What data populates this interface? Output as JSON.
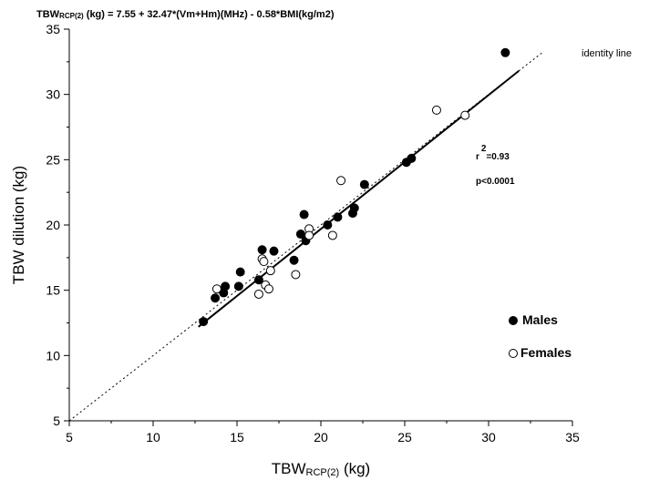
{
  "chart_data": {
    "type": "scatter",
    "title": "TBWRCP(2) (kg) = 7.55 + 32.47*(Vm+Hm)(MHz) - 0.58*BMI(kg/m2)",
    "title_parts": {
      "prefix": "TBW",
      "subscript": "RCP(2)",
      "rest": " (kg) = 7.55 + 32.47*(Vm+Hm)(MHz) - 0.58*BMI(kg/m2)"
    },
    "xlabel": "TBWRCP(2) (kg)",
    "xlabel_parts": {
      "prefix": "TBW",
      "subscript": "RCP(2)",
      "rest": " (kg)"
    },
    "ylabel": "TBW  dilution (kg)",
    "xlim": [
      5,
      35
    ],
    "ylim": [
      5,
      35
    ],
    "xticks": [
      5,
      10,
      15,
      20,
      25,
      30,
      35
    ],
    "yticks": [
      5,
      10,
      15,
      20,
      25,
      30,
      35
    ],
    "grid": false,
    "series": [
      {
        "name": "Males",
        "marker": "filled-circle",
        "color": "#000000",
        "points": [
          [
            13.0,
            12.6
          ],
          [
            13.7,
            14.4
          ],
          [
            14.2,
            14.8
          ],
          [
            14.3,
            15.3
          ],
          [
            15.2,
            16.4
          ],
          [
            15.1,
            15.3
          ],
          [
            16.3,
            15.8
          ],
          [
            16.5,
            18.1
          ],
          [
            17.2,
            18.0
          ],
          [
            18.4,
            17.3
          ],
          [
            18.8,
            19.3
          ],
          [
            19.0,
            20.8
          ],
          [
            19.1,
            18.8
          ],
          [
            20.4,
            20.0
          ],
          [
            21.0,
            20.6
          ],
          [
            21.9,
            20.9
          ],
          [
            22.0,
            21.3
          ],
          [
            22.6,
            23.1
          ],
          [
            25.1,
            24.8
          ],
          [
            25.4,
            25.1
          ],
          [
            31.0,
            33.2
          ]
        ]
      },
      {
        "name": "Females",
        "marker": "open-circle",
        "color": "#000000",
        "points": [
          [
            13.8,
            15.1
          ],
          [
            16.3,
            14.7
          ],
          [
            16.5,
            17.4
          ],
          [
            16.6,
            17.2
          ],
          [
            16.7,
            15.4
          ],
          [
            16.9,
            15.1
          ],
          [
            17.0,
            16.5
          ],
          [
            18.5,
            16.2
          ],
          [
            19.3,
            19.7
          ],
          [
            19.3,
            19.2
          ],
          [
            20.7,
            19.2
          ],
          [
            21.2,
            23.4
          ],
          [
            26.9,
            28.8
          ],
          [
            28.6,
            28.4
          ]
        ]
      }
    ],
    "regression_line": {
      "x": [
        12.7,
        31.8
      ],
      "y": [
        12.2,
        31.8
      ]
    },
    "identity_line": {
      "x": [
        5,
        33.3
      ],
      "y": [
        5,
        33.3
      ],
      "label": "identity line"
    },
    "stats": {
      "r2_base": "r",
      "r2_exp": "2",
      "r2_value": "=0.93",
      "p": "p<0.0001"
    },
    "legend": {
      "placement": "bottom-right",
      "entries": [
        {
          "label": "Males",
          "marker": "filled-circle"
        },
        {
          "label": "Females",
          "marker": "open-circle"
        }
      ]
    }
  }
}
